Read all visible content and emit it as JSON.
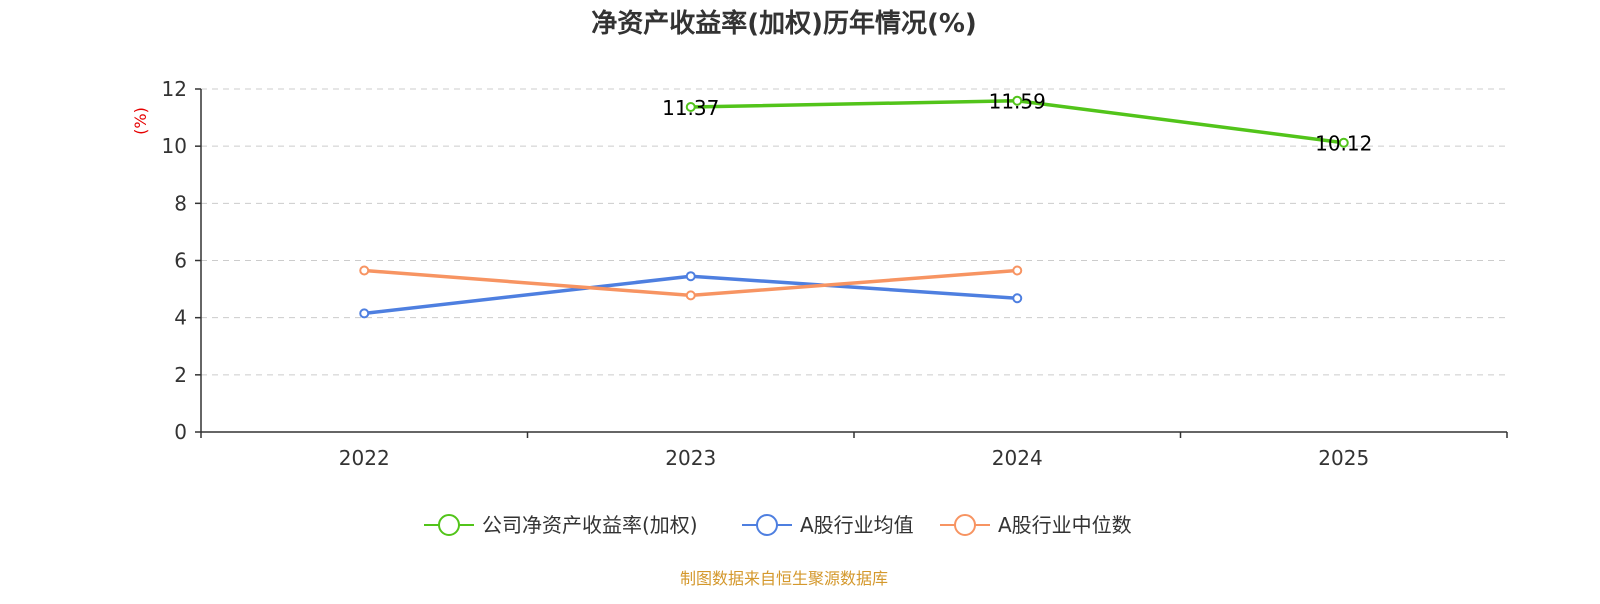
{
  "chart_data": {
    "type": "line",
    "title": "净资产收益率(加权)历年情况(%)",
    "ylabel": "(%)",
    "xlabel": "",
    "categories": [
      "2022",
      "2023",
      "2024",
      "2025"
    ],
    "ylim": [
      0,
      12
    ],
    "yticks": [
      0,
      2,
      4,
      6,
      8,
      10,
      12
    ],
    "grid": true,
    "legend_position": "bottom-center",
    "series": [
      {
        "name": "公司净资产收益率(加权)",
        "color": "#52c41a",
        "values": [
          null,
          11.37,
          11.59,
          10.12
        ],
        "labels": [
          null,
          "11.37",
          "11.59",
          "10.12"
        ]
      },
      {
        "name": "A股行业均值",
        "color": "#4e7fe0",
        "values": [
          4.15,
          5.45,
          4.68,
          null
        ]
      },
      {
        "name": "A股行业中位数",
        "color": "#f79462",
        "values": [
          5.65,
          4.78,
          5.65,
          null
        ]
      }
    ]
  },
  "source_note": "制图数据来自恒生聚源数据库",
  "colors": {
    "title": "#333333",
    "axis": "#333333",
    "ylabel": "#e60000",
    "grid": "#cccccc",
    "source": "#d4982c"
  }
}
